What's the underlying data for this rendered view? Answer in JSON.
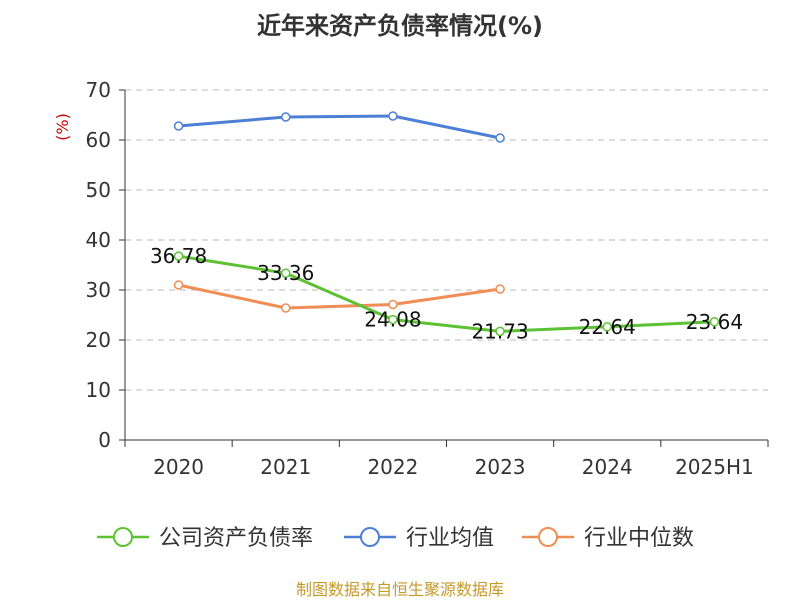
{
  "chart_data": {
    "type": "line",
    "title": "近年来资产负债率情况(%)",
    "ylabel": "(%)",
    "categories": [
      "2020",
      "2021",
      "2022",
      "2023",
      "2024",
      "2025H1"
    ],
    "ylim": [
      0,
      70
    ],
    "yticks": [
      0,
      10,
      20,
      30,
      40,
      50,
      60,
      70
    ],
    "grid": true,
    "legend_position": "bottom",
    "series": [
      {
        "name": "公司资产负债率",
        "color": "#5cc234",
        "values": [
          36.78,
          33.36,
          24.08,
          21.73,
          22.64,
          23.64
        ],
        "labels": [
          "36.78",
          "33.36",
          "24.08",
          "21.73",
          "22.64",
          "23.64"
        ]
      },
      {
        "name": "行业均值",
        "color": "#4e7fd6",
        "values": [
          62.8,
          64.6,
          64.8,
          60.4,
          null,
          null
        ]
      },
      {
        "name": "行业中位数",
        "color": "#f08d54",
        "values": [
          31.0,
          26.4,
          27.1,
          30.2,
          null,
          null
        ]
      }
    ]
  },
  "source": "制图数据来自恒生聚源数据库",
  "colors": {
    "source": "#c49a2c",
    "ylabel": "#cc0000",
    "axis": "#333333",
    "grid": "#bbbbbb"
  }
}
